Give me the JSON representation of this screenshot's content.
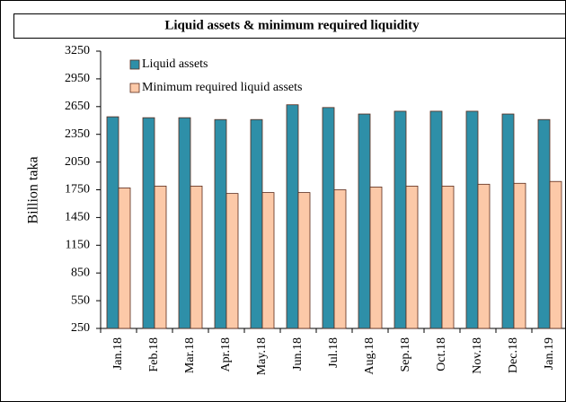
{
  "chart_data": {
    "type": "bar",
    "title": "Liquid assets & minimum required liquidity",
    "y_label": "Billion taka",
    "categories": [
      "Jan.18",
      "Feb.18",
      "Mar.18",
      "Apr.18",
      "May.18",
      "Jun.18",
      "Jul.18",
      "Aug.18",
      "Sep.18",
      "Oct.18",
      "Nov.18",
      "Dec.18",
      "Jan.19"
    ],
    "series": [
      {
        "name": "Liquid assets",
        "color": "#2e8fa8",
        "values": [
          2540,
          2530,
          2530,
          2510,
          2510,
          2670,
          2640,
          2570,
          2600,
          2600,
          2600,
          2570,
          2510
        ]
      },
      {
        "name": "Minimum required liquid assets",
        "color": "#fcc9a8",
        "values": [
          1770,
          1790,
          1790,
          1710,
          1720,
          1720,
          1750,
          1780,
          1790,
          1790,
          1810,
          1820,
          1840
        ]
      }
    ],
    "ylim": [
      250,
      3250
    ],
    "yticks": [
      250,
      550,
      850,
      1150,
      1450,
      1750,
      2050,
      2350,
      2650,
      2950,
      3250
    ],
    "legend": "top-left"
  }
}
